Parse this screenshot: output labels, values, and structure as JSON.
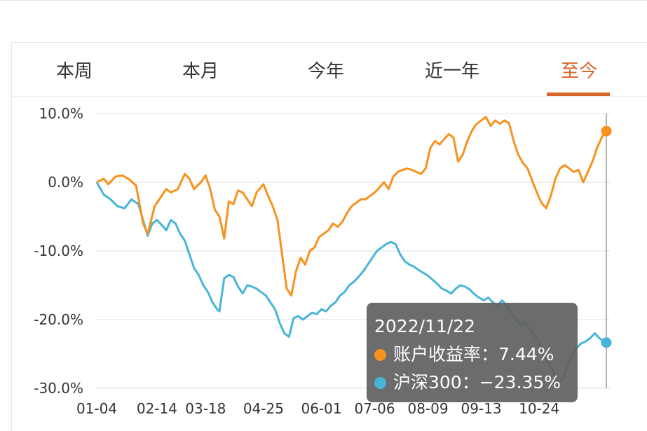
{
  "tabs": [
    {
      "label": "本周",
      "active": false
    },
    {
      "label": "本月",
      "active": false
    },
    {
      "label": "今年",
      "active": false
    },
    {
      "label": "近一年",
      "active": false
    },
    {
      "label": "至今",
      "active": true
    }
  ],
  "colors": {
    "accent": "#d8672c",
    "series_account": "#f7921e",
    "series_index": "#48b5d8",
    "tooltip_bg": "#5f5f5f"
  },
  "tooltip": {
    "date": "2022/11/22",
    "rows": [
      {
        "label": "账户收益率：",
        "value": "7.44%"
      },
      {
        "label": "沪深300：",
        "value": "−23.35%"
      }
    ]
  },
  "chart_data": {
    "type": "line",
    "title": "",
    "xlabel": "",
    "ylabel": "",
    "x_tick_labels": [
      "01-04",
      "02-14",
      "03-18",
      "04-25",
      "06-01",
      "07-06",
      "08-09",
      "09-13",
      "10-24"
    ],
    "y_tick_labels": [
      "10.0%",
      "0.0%",
      "-10.0%",
      "-20.0%",
      "-30.0%"
    ],
    "y_ticks": [
      10,
      0,
      -10,
      -20,
      -30
    ],
    "ylim": [
      -30,
      10
    ],
    "grid": true,
    "x_range": [
      0,
      220
    ],
    "tick_index": [
      0,
      26,
      47,
      72,
      97,
      120,
      143,
      166,
      191
    ],
    "hover_index": 220,
    "series": [
      {
        "name": "账户收益率",
        "points": [
          [
            0,
            0
          ],
          [
            3,
            0.5
          ],
          [
            5,
            -0.3
          ],
          [
            8,
            0.8
          ],
          [
            11,
            1
          ],
          [
            14,
            0.4
          ],
          [
            17,
            -0.5
          ],
          [
            20,
            -6
          ],
          [
            22,
            -7.5
          ],
          [
            25,
            -3.5
          ],
          [
            27,
            -2.5
          ],
          [
            30,
            -1
          ],
          [
            32,
            -1.5
          ],
          [
            35,
            -1
          ],
          [
            38,
            1.2
          ],
          [
            40,
            0.5
          ],
          [
            42,
            -1
          ],
          [
            45,
            0
          ],
          [
            47,
            1
          ],
          [
            49,
            -1
          ],
          [
            51,
            -4
          ],
          [
            53,
            -5
          ],
          [
            55,
            -8.2
          ],
          [
            57,
            -2.8
          ],
          [
            59,
            -3.2
          ],
          [
            61,
            -1.2
          ],
          [
            63,
            -1.5
          ],
          [
            65,
            -2.5
          ],
          [
            67,
            -3.5
          ],
          [
            69,
            -1.5
          ],
          [
            72,
            -0.3
          ],
          [
            74,
            -2
          ],
          [
            76,
            -3.5
          ],
          [
            78,
            -5.5
          ],
          [
            80,
            -10.5
          ],
          [
            82,
            -15.5
          ],
          [
            84,
            -16.5
          ],
          [
            86,
            -13
          ],
          [
            88,
            -11
          ],
          [
            90,
            -12
          ],
          [
            92,
            -10
          ],
          [
            94,
            -9.5
          ],
          [
            96,
            -8
          ],
          [
            98,
            -7.5
          ],
          [
            100,
            -7
          ],
          [
            102,
            -6
          ],
          [
            104,
            -6.5
          ],
          [
            106,
            -5.8
          ],
          [
            108,
            -4.5
          ],
          [
            110,
            -3.5
          ],
          [
            112,
            -3
          ],
          [
            114,
            -2.5
          ],
          [
            116,
            -2.5
          ],
          [
            118,
            -2
          ],
          [
            120,
            -1.5
          ],
          [
            122,
            -0.8
          ],
          [
            124,
            0
          ],
          [
            126,
            -1
          ],
          [
            128,
            0.8
          ],
          [
            130,
            1.5
          ],
          [
            132,
            1.8
          ],
          [
            134,
            2
          ],
          [
            136,
            1.8
          ],
          [
            138,
            1.5
          ],
          [
            140,
            1.2
          ],
          [
            142,
            2
          ],
          [
            144,
            5
          ],
          [
            146,
            6
          ],
          [
            148,
            5.5
          ],
          [
            150,
            6.3
          ],
          [
            152,
            7
          ],
          [
            154,
            6.5
          ],
          [
            156,
            3
          ],
          [
            158,
            4
          ],
          [
            160,
            6
          ],
          [
            162,
            7.5
          ],
          [
            164,
            8.5
          ],
          [
            166,
            9
          ],
          [
            168,
            9.5
          ],
          [
            170,
            8.2
          ],
          [
            172,
            9
          ],
          [
            174,
            8.5
          ],
          [
            176,
            9
          ],
          [
            178,
            8.6
          ],
          [
            180,
            6
          ],
          [
            182,
            4
          ],
          [
            184,
            2.8
          ],
          [
            186,
            2
          ],
          [
            188,
            0.2
          ],
          [
            190,
            -1.5
          ],
          [
            192,
            -3
          ],
          [
            194,
            -3.8
          ],
          [
            196,
            -2
          ],
          [
            198,
            0.5
          ],
          [
            200,
            2
          ],
          [
            202,
            2.5
          ],
          [
            204,
            2
          ],
          [
            206,
            1.5
          ],
          [
            208,
            1.8
          ],
          [
            210,
            0
          ],
          [
            212,
            1.5
          ],
          [
            214,
            3
          ],
          [
            216,
            5
          ],
          [
            218,
            6.5
          ],
          [
            220,
            7.44
          ]
        ]
      },
      {
        "name": "沪深300",
        "points": [
          [
            0,
            0
          ],
          [
            3,
            -1.8
          ],
          [
            6,
            -2.5
          ],
          [
            9,
            -3.5
          ],
          [
            12,
            -3.8
          ],
          [
            15,
            -2.5
          ],
          [
            18,
            -3.2
          ],
          [
            20,
            -5.5
          ],
          [
            22,
            -7.8
          ],
          [
            24,
            -6
          ],
          [
            26,
            -5.5
          ],
          [
            28,
            -6.2
          ],
          [
            30,
            -7
          ],
          [
            32,
            -5.5
          ],
          [
            34,
            -6
          ],
          [
            36,
            -7.5
          ],
          [
            38,
            -8.5
          ],
          [
            40,
            -10.5
          ],
          [
            42,
            -12.5
          ],
          [
            44,
            -13.5
          ],
          [
            46,
            -15
          ],
          [
            48,
            -16
          ],
          [
            50,
            -17.5
          ],
          [
            52,
            -18.5
          ],
          [
            53,
            -18.8
          ],
          [
            55,
            -14
          ],
          [
            57,
            -13.5
          ],
          [
            59,
            -13.8
          ],
          [
            61,
            -15.2
          ],
          [
            63,
            -16.2
          ],
          [
            65,
            -15
          ],
          [
            67,
            -15.2
          ],
          [
            69,
            -15.5
          ],
          [
            71,
            -16
          ],
          [
            73,
            -16.5
          ],
          [
            75,
            -17.5
          ],
          [
            77,
            -18.5
          ],
          [
            79,
            -20.5
          ],
          [
            81,
            -22
          ],
          [
            83,
            -22.5
          ],
          [
            85,
            -19.8
          ],
          [
            87,
            -19.5
          ],
          [
            89,
            -20
          ],
          [
            91,
            -19.5
          ],
          [
            93,
            -19
          ],
          [
            95,
            -19.2
          ],
          [
            97,
            -18.5
          ],
          [
            99,
            -18.8
          ],
          [
            101,
            -18
          ],
          [
            103,
            -17.5
          ],
          [
            105,
            -16.5
          ],
          [
            107,
            -16
          ],
          [
            109,
            -15
          ],
          [
            111,
            -14.5
          ],
          [
            113,
            -13.8
          ],
          [
            115,
            -13
          ],
          [
            117,
            -12
          ],
          [
            119,
            -11
          ],
          [
            121,
            -10
          ],
          [
            123,
            -9.5
          ],
          [
            125,
            -9
          ],
          [
            127,
            -8.7
          ],
          [
            129,
            -9
          ],
          [
            131,
            -10.5
          ],
          [
            133,
            -11.5
          ],
          [
            135,
            -12
          ],
          [
            137,
            -12.3
          ],
          [
            139,
            -12.8
          ],
          [
            141,
            -13.2
          ],
          [
            143,
            -13.6
          ],
          [
            145,
            -14.2
          ],
          [
            147,
            -14.8
          ],
          [
            149,
            -15.5
          ],
          [
            151,
            -15.8
          ],
          [
            153,
            -16.2
          ],
          [
            155,
            -15.5
          ],
          [
            157,
            -15
          ],
          [
            159,
            -15.2
          ],
          [
            161,
            -15.6
          ],
          [
            163,
            -16.3
          ],
          [
            165,
            -16.8
          ],
          [
            167,
            -17.2
          ],
          [
            169,
            -16.8
          ],
          [
            171,
            -17.5
          ],
          [
            173,
            -18
          ],
          [
            175,
            -17.2
          ],
          [
            177,
            -18
          ],
          [
            179,
            -19
          ],
          [
            181,
            -20
          ],
          [
            183,
            -20.8
          ],
          [
            185,
            -20.5
          ],
          [
            187,
            -21.5
          ],
          [
            189,
            -22.3
          ],
          [
            191,
            -23.5
          ],
          [
            193,
            -25
          ],
          [
            195,
            -26.5
          ],
          [
            197,
            -27.5
          ],
          [
            199,
            -29
          ],
          [
            201,
            -28.8
          ],
          [
            203,
            -27
          ],
          [
            205,
            -25.5
          ],
          [
            207,
            -24.2
          ],
          [
            209,
            -23.5
          ],
          [
            211,
            -23.2
          ],
          [
            213,
            -22.7
          ],
          [
            215,
            -22
          ],
          [
            217,
            -22.7
          ],
          [
            219,
            -23.2
          ],
          [
            220,
            -23.35
          ]
        ]
      }
    ]
  }
}
